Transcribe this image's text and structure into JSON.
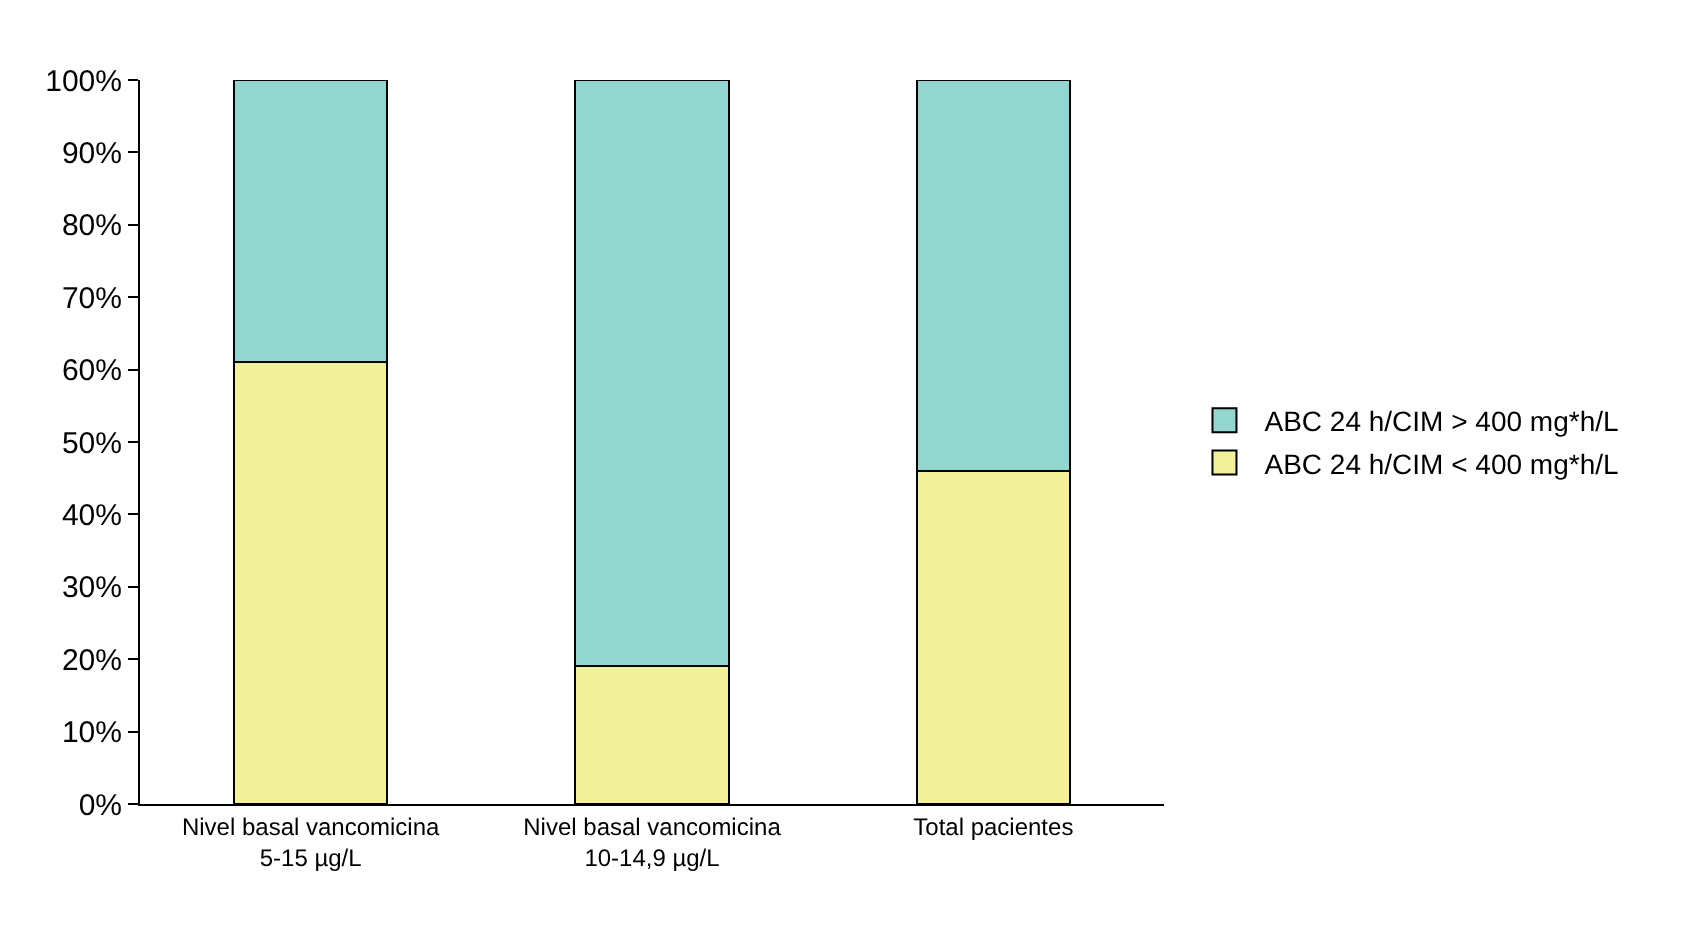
{
  "chart_data": {
    "type": "bar",
    "stacked": true,
    "categories": [
      "Nivel basal vancomicina\n5-15 µg/L",
      "Nivel basal vancomicina\n10-14,9 µg/L",
      "Total pacientes"
    ],
    "series": [
      {
        "name": "ABC 24 h/CIM < 400 mg*h/L",
        "color": "#f2f19a",
        "values": [
          61,
          19,
          46
        ]
      },
      {
        "name": "ABC 24 h/CIM > 400 mg*h/L",
        "color": "#93d5cf",
        "values": [
          39,
          81,
          54
        ]
      }
    ],
    "ylim": [
      0,
      100
    ],
    "yticks": [
      {
        "value": 0,
        "label": "0%"
      },
      {
        "value": 10,
        "label": "10%"
      },
      {
        "value": 20,
        "label": "20%"
      },
      {
        "value": 30,
        "label": "30%"
      },
      {
        "value": 40,
        "label": "40%"
      },
      {
        "value": 50,
        "label": "50%"
      },
      {
        "value": 60,
        "label": "60%"
      },
      {
        "value": 70,
        "label": "70%"
      },
      {
        "value": 80,
        "label": "80%"
      },
      {
        "value": 90,
        "label": "90%"
      },
      {
        "value": 100,
        "label": "100%"
      }
    ],
    "grid": false,
    "legend": "right"
  }
}
